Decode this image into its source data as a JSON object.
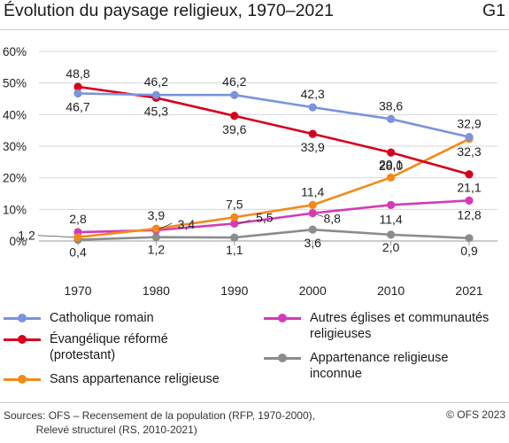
{
  "header": {
    "title": "Évolution du paysage religieux, 1970–2021",
    "code": "G1"
  },
  "chart_data": {
    "type": "line",
    "title": "Évolution du paysage religieux, 1970–2021",
    "categories": [
      "1970",
      "1980",
      "1990",
      "2000",
      "2010",
      "2021"
    ],
    "ylim": [
      0,
      60
    ],
    "yticks": [
      "0%",
      "10%",
      "20%",
      "30%",
      "40%",
      "50%",
      "60%"
    ],
    "grid": true,
    "series": [
      {
        "name": "Catholique romain",
        "color": "#7b93dd",
        "values": [
          46.7,
          46.2,
          46.2,
          42.3,
          38.6,
          32.9
        ],
        "labels": [
          "46,7",
          "46,2",
          "46,2",
          "42,3",
          "38,6",
          "32,9"
        ]
      },
      {
        "name": "Évangélique réformé (protestant)",
        "color": "#d5001c",
        "values": [
          48.8,
          45.3,
          39.6,
          33.9,
          28.0,
          21.1
        ],
        "labels": [
          "48,8",
          "45,3",
          "39,6",
          "33,9",
          "28,0",
          "21,1"
        ]
      },
      {
        "name": "Sans appartenance religieuse",
        "color": "#f28a1b",
        "values": [
          1.2,
          3.9,
          7.5,
          11.4,
          20.1,
          32.3
        ],
        "labels": [
          "1,2",
          "3,9",
          "7,5",
          "11,4",
          "20,1",
          "32,3"
        ]
      },
      {
        "name": "Autres églises et communautés religieuses",
        "color": "#d43ab8",
        "values": [
          2.8,
          3.4,
          5.5,
          8.8,
          11.4,
          12.8
        ],
        "labels": [
          "2,8",
          "3,4",
          "5,5",
          "8,8",
          "11,4",
          "12,8"
        ]
      },
      {
        "name": "Appartenance religieuse inconnue",
        "color": "#8c8c8c",
        "values": [
          0.4,
          1.2,
          1.1,
          3.6,
          2.0,
          0.9
        ],
        "labels": [
          "0,4",
          "1,2",
          "1,1",
          "3,6",
          "2,0",
          "0,9"
        ]
      }
    ]
  },
  "legend": [
    {
      "label": "Catholique romain",
      "color": "#7b93dd"
    },
    {
      "label": "Évangélique réformé\n(protestant)",
      "color": "#d5001c"
    },
    {
      "label": "Sans appartenance religieuse",
      "color": "#f28a1b"
    },
    {
      "label": "Autres églises et communautés\nreligieuses",
      "color": "#d43ab8"
    },
    {
      "label": "Appartenance religieuse\ninconnue",
      "color": "#8c8c8c"
    }
  ],
  "footer": {
    "sources": "Sources: OFS – Recensement de la population (RFP, 1970-2000),\n           Relevé structurel (RS, 2010-2021)",
    "copyright": "© OFS 2023"
  }
}
